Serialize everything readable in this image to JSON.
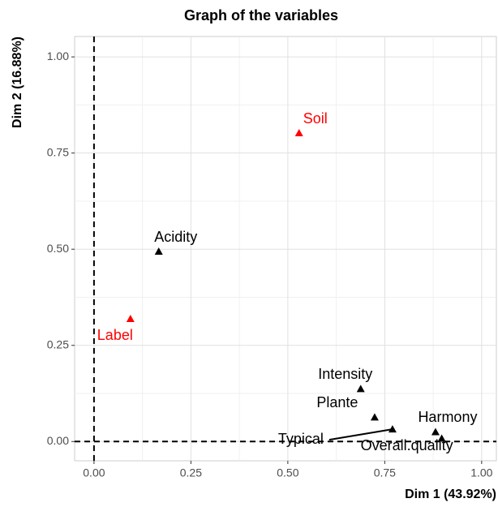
{
  "chart_data": {
    "type": "scatter",
    "title": "Graph of the variables",
    "x_label": "Dim 1 (43.92%)",
    "y_label": "Dim 2 (16.88%)",
    "points": [
      {
        "label": "Soil",
        "x": 0.529,
        "y": 0.802,
        "color": "#ff0000"
      },
      {
        "label": "Acidity",
        "x": 0.167,
        "y": 0.494,
        "color": "#000000"
      },
      {
        "label": "Label",
        "x": 0.094,
        "y": 0.319,
        "color": "#ff0000"
      },
      {
        "label": "Intensity",
        "x": 0.688,
        "y": 0.137,
        "color": "#000000"
      },
      {
        "label": "Plante",
        "x": 0.724,
        "y": 0.063,
        "color": "#000000"
      },
      {
        "label": "Typical",
        "x": 0.77,
        "y": 0.032,
        "color": "#000000"
      },
      {
        "label": "Harmony",
        "x": 0.881,
        "y": 0.025,
        "color": "#000000"
      },
      {
        "label": "Overall.quality",
        "x": 0.897,
        "y": 0.008,
        "color": "#000000"
      }
    ],
    "xlim": [
      -0.05,
      1.038
    ],
    "ylim": [
      -0.05,
      1.053
    ],
    "xticks": [
      {
        "value": 0,
        "label": "0.00"
      },
      {
        "value": 0.25,
        "label": "0.25"
      },
      {
        "value": 0.5,
        "label": "0.50"
      },
      {
        "value": 0.75,
        "label": "0.75"
      },
      {
        "value": 1,
        "label": "1.00"
      }
    ],
    "yticks": [
      {
        "value": 0,
        "label": "0.00"
      },
      {
        "value": 0.25,
        "label": "0.25"
      },
      {
        "value": 0.5,
        "label": "0.50"
      },
      {
        "value": 0.75,
        "label": "0.75"
      },
      {
        "value": 1,
        "label": "1.00"
      }
    ],
    "grid": true
  }
}
